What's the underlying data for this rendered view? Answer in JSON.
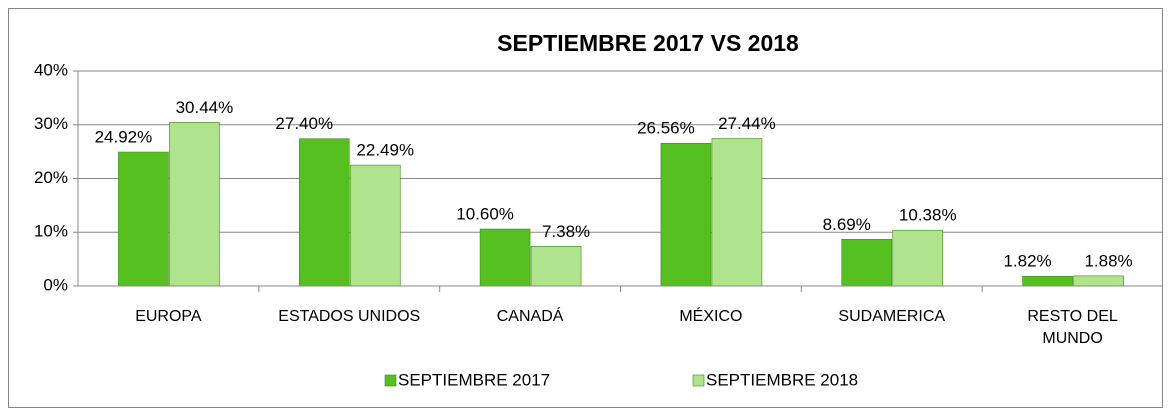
{
  "chart_data": {
    "type": "bar",
    "title": "SEPTIEMBRE 2017 VS 2018",
    "categories": [
      "EUROPA",
      "ESTADOS UNIDOS",
      "CANADÁ",
      "MÉXICO",
      "SUDAMERICA",
      "RESTO DEL MUNDO"
    ],
    "series": [
      {
        "name": "SEPTIEMBRE 2017",
        "color": "#56c020",
        "values": [
          24.92,
          27.4,
          10.6,
          26.56,
          8.69,
          1.82
        ],
        "value_labels": [
          "24.92%",
          "27.40%",
          "10.60%",
          "26.56%",
          "8.69%",
          "1.82%"
        ]
      },
      {
        "name": "SEPTIEMBRE 2018",
        "color": "#b0e48c",
        "values": [
          30.44,
          22.49,
          7.38,
          27.44,
          10.38,
          1.88
        ],
        "value_labels": [
          "30.44%",
          "22.49%",
          "7.38%",
          "27.44%",
          "10.38%",
          "1.88%"
        ]
      }
    ],
    "ylim": [
      0,
      40
    ],
    "yticks": [
      {
        "value": 0,
        "label": "0%"
      },
      {
        "value": 10,
        "label": "10%"
      },
      {
        "value": 20,
        "label": "20%"
      },
      {
        "value": 30,
        "label": "30%"
      },
      {
        "value": 40,
        "label": "40%"
      }
    ],
    "grid": true,
    "legend": "bottom"
  }
}
